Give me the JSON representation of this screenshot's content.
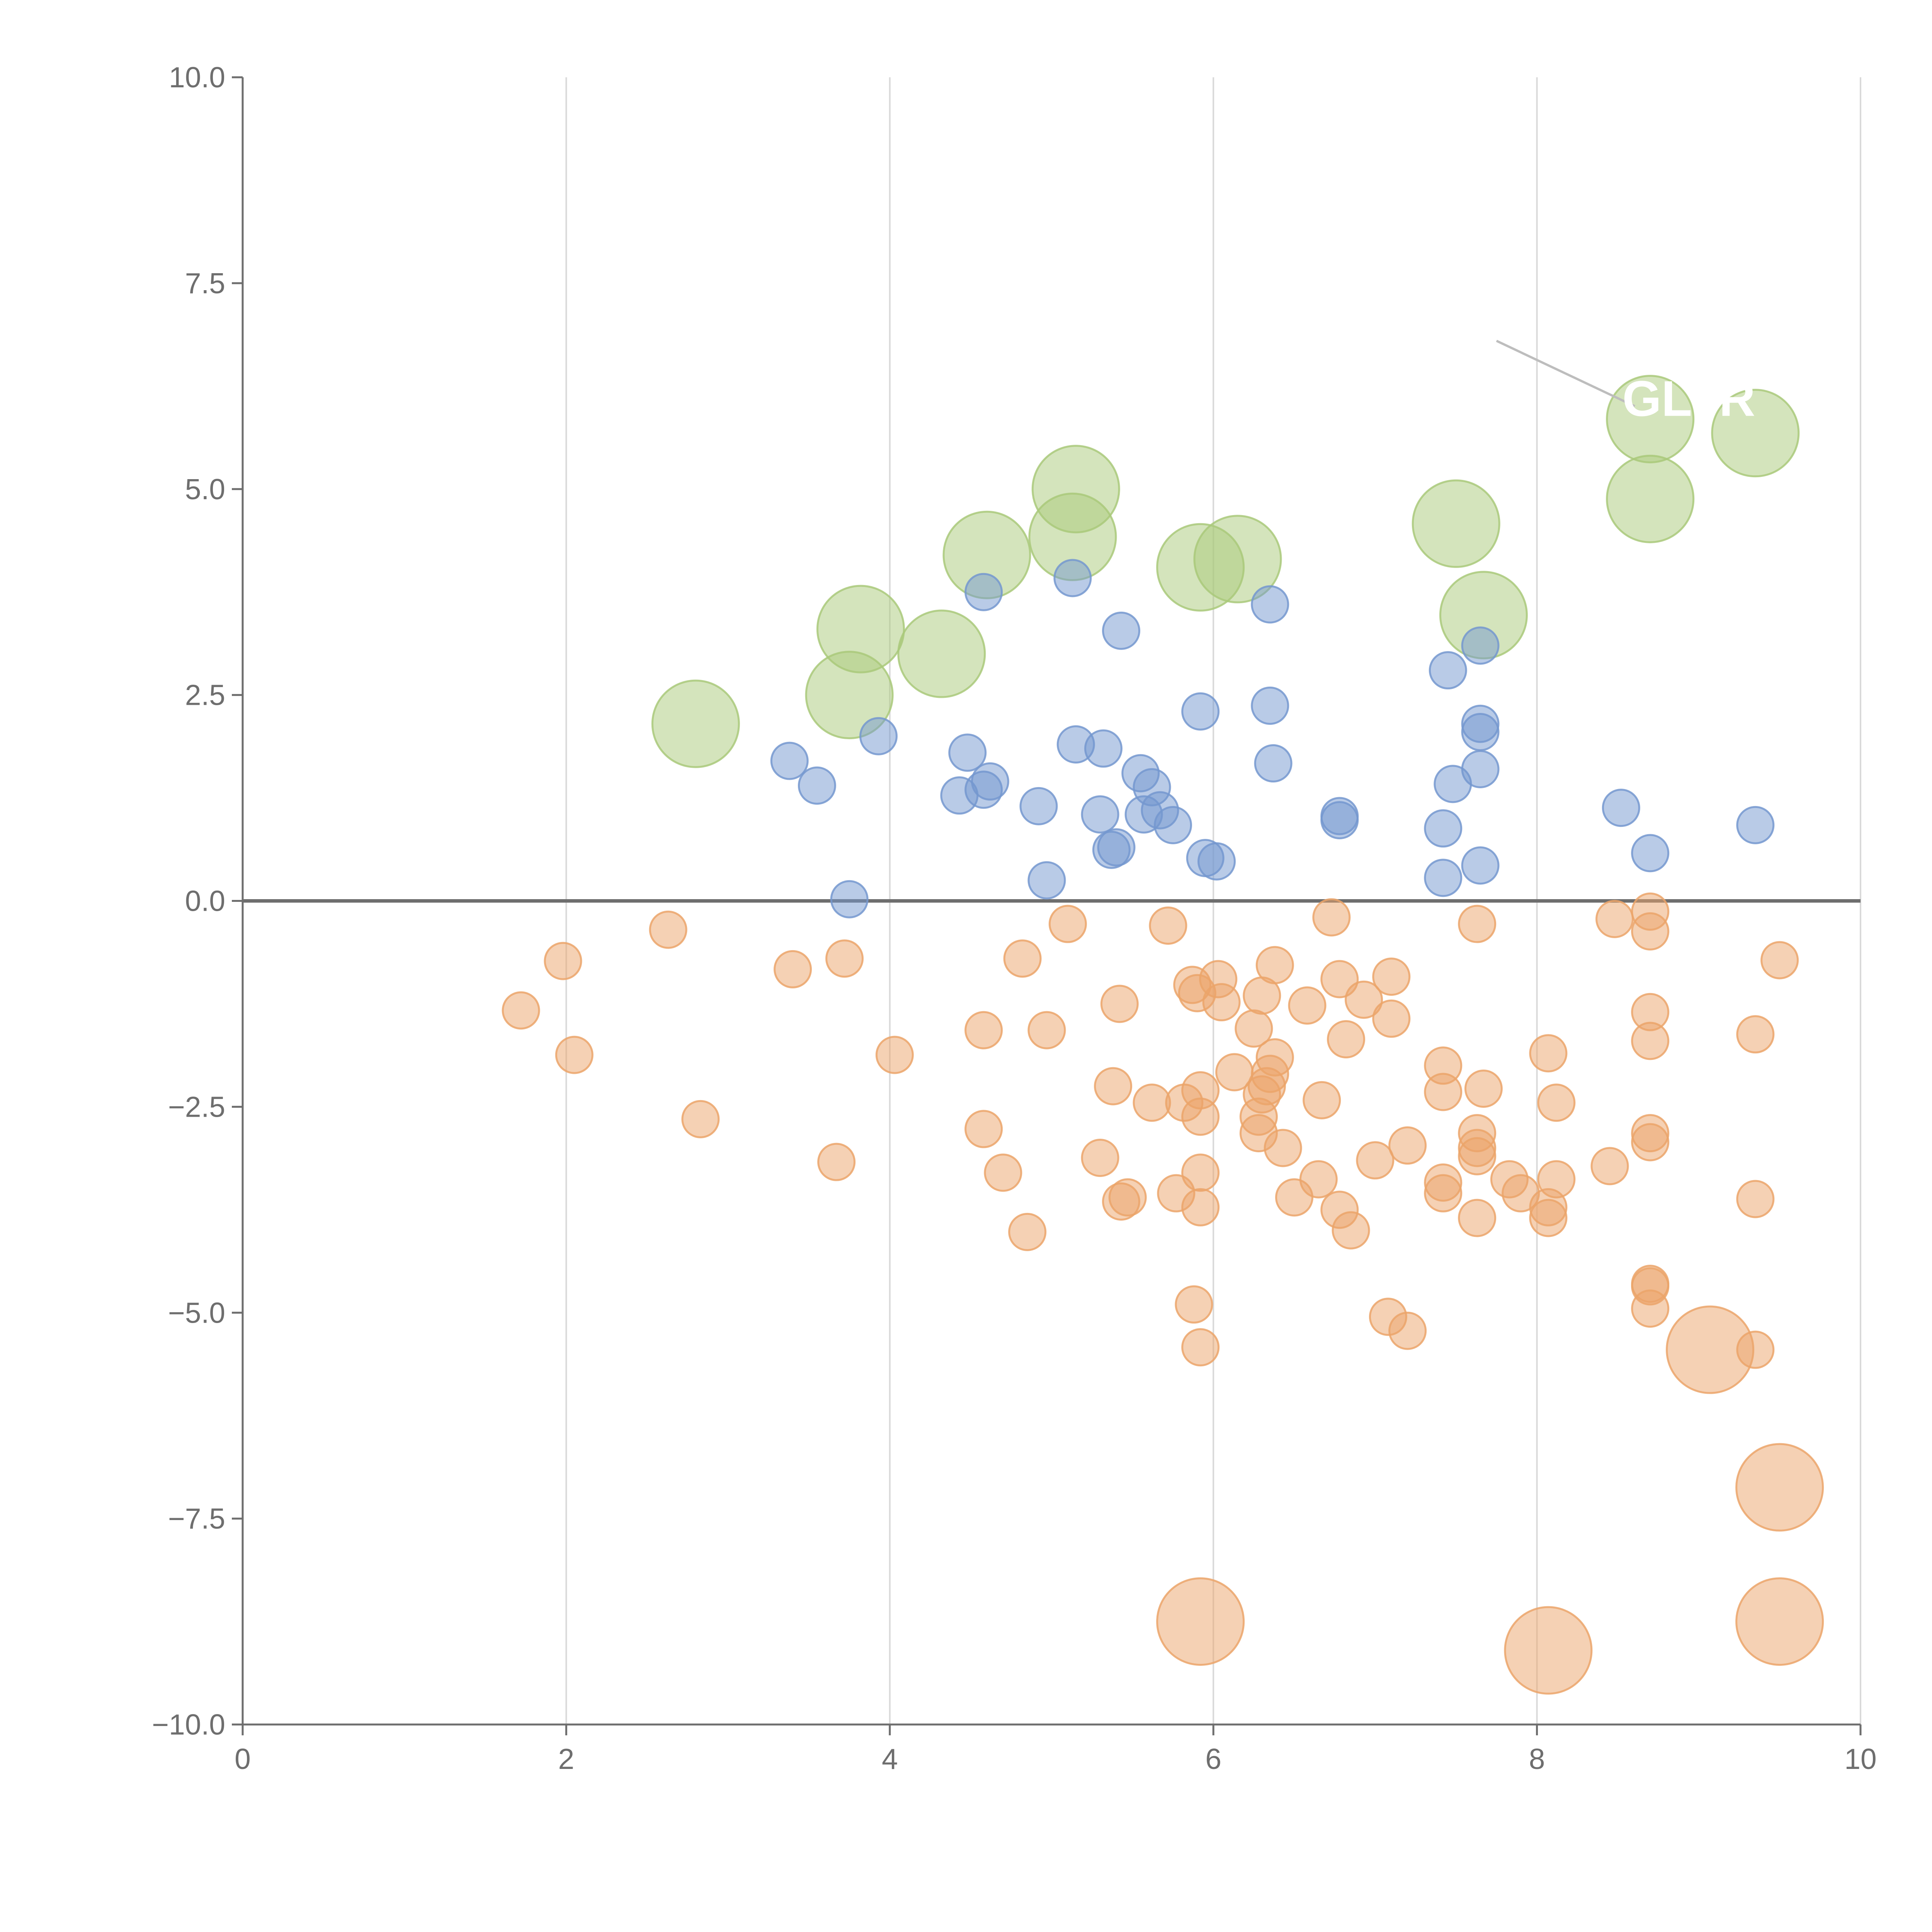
{
  "chart_data": {
    "type": "scatter",
    "title": "",
    "xlabel": "",
    "ylabel": "",
    "xlim": [
      0,
      10
    ],
    "ylim": [
      -10,
      10
    ],
    "grid": "vertical",
    "x_ticks": [
      0,
      2,
      4,
      6,
      8,
      10
    ],
    "x_tick_labels": [
      "0",
      "2",
      "4",
      "6",
      "8",
      "10"
    ],
    "y_ticks": [
      10,
      7.5,
      5,
      2.5,
      0,
      -2.5,
      -5,
      -7.5,
      -10
    ],
    "y_tick_labels": [
      "10.0",
      "7.5",
      "5.0",
      "2.5",
      "0.0",
      "−2.5",
      "−5.0",
      "−7.5",
      "−10.0"
    ],
    "colors": {
      "green": "#a9c97a",
      "blue": "#7498cf",
      "orange": "#eba46a",
      "axis": "#6e6e6e",
      "grid": "#d9d9d9"
    },
    "annotations": [
      {
        "text": "GLTR",
        "x": 8.7,
        "y": 6.1
      }
    ],
    "series": [
      {
        "name": "green",
        "color": "#a9c97a",
        "size": "large",
        "points": [
          [
            2.8,
            2.15
          ],
          [
            3.75,
            2.5
          ],
          [
            3.82,
            3.3
          ],
          [
            4.32,
            3.0
          ],
          [
            4.6,
            4.2
          ],
          [
            5.13,
            4.42
          ],
          [
            5.15,
            5.0
          ],
          [
            5.92,
            4.05
          ],
          [
            6.15,
            4.15
          ],
          [
            7.5,
            4.58
          ],
          [
            7.67,
            3.47
          ],
          [
            8.7,
            5.85
          ],
          [
            8.7,
            4.88
          ],
          [
            9.35,
            5.68
          ]
        ]
      },
      {
        "name": "blue",
        "color": "#7498cf",
        "size": "small",
        "points": [
          [
            3.38,
            1.7
          ],
          [
            3.55,
            1.4
          ],
          [
            3.75,
            0.02
          ],
          [
            3.93,
            2.0
          ],
          [
            4.43,
            1.28
          ],
          [
            4.48,
            1.8
          ],
          [
            4.58,
            3.75
          ],
          [
            4.58,
            1.35
          ],
          [
            4.62,
            1.45
          ],
          [
            4.92,
            1.15
          ],
          [
            4.97,
            0.25
          ],
          [
            5.13,
            3.92
          ],
          [
            5.15,
            1.9
          ],
          [
            5.3,
            1.05
          ],
          [
            5.32,
            1.85
          ],
          [
            5.37,
            0.62
          ],
          [
            5.4,
            0.65
          ],
          [
            5.43,
            3.28
          ],
          [
            5.55,
            1.55
          ],
          [
            5.57,
            1.05
          ],
          [
            5.62,
            1.38
          ],
          [
            5.67,
            1.1
          ],
          [
            5.75,
            0.92
          ],
          [
            5.92,
            2.3
          ],
          [
            5.95,
            0.52
          ],
          [
            6.02,
            0.48
          ],
          [
            6.35,
            3.6
          ],
          [
            6.35,
            2.37
          ],
          [
            6.37,
            1.67
          ],
          [
            6.78,
            0.98
          ],
          [
            6.78,
            1.03
          ],
          [
            7.42,
            0.88
          ],
          [
            7.42,
            0.28
          ],
          [
            7.45,
            2.8
          ],
          [
            7.48,
            1.42
          ],
          [
            7.65,
            3.1
          ],
          [
            7.65,
            2.15
          ],
          [
            7.65,
            2.05
          ],
          [
            7.65,
            1.6
          ],
          [
            7.65,
            0.43
          ],
          [
            8.52,
            1.13
          ],
          [
            8.7,
            0.58
          ],
          [
            9.35,
            0.92
          ]
        ]
      },
      {
        "name": "orange",
        "color": "#eba46a",
        "size": "small",
        "points": [
          [
            1.72,
            -1.33
          ],
          [
            1.98,
            -0.73
          ],
          [
            2.05,
            -1.87
          ],
          [
            2.63,
            -0.35
          ],
          [
            2.83,
            -2.65
          ],
          [
            3.4,
            -0.83
          ],
          [
            3.67,
            -3.17
          ],
          [
            3.72,
            -0.7
          ],
          [
            4.03,
            -1.87
          ],
          [
            4.58,
            -1.57
          ],
          [
            4.58,
            -2.77
          ],
          [
            4.7,
            -3.3
          ],
          [
            4.82,
            -0.7
          ],
          [
            4.85,
            -4.02
          ],
          [
            4.97,
            -1.57
          ],
          [
            5.1,
            -0.28
          ],
          [
            5.3,
            -3.12
          ],
          [
            5.38,
            -2.25
          ],
          [
            5.42,
            -1.25
          ],
          [
            5.43,
            -3.65
          ],
          [
            5.47,
            -3.6
          ],
          [
            5.62,
            -2.45
          ],
          [
            5.72,
            -0.3
          ],
          [
            5.77,
            -3.55
          ],
          [
            5.82,
            -2.45
          ],
          [
            5.87,
            -1.02
          ],
          [
            5.88,
            -4.9
          ],
          [
            5.9,
            -1.12
          ],
          [
            5.92,
            -2.3
          ],
          [
            5.92,
            -2.62
          ],
          [
            5.92,
            -3.3
          ],
          [
            5.92,
            -3.72
          ],
          [
            5.92,
            -5.42
          ],
          [
            6.03,
            -0.95
          ],
          [
            6.05,
            -1.23
          ],
          [
            6.13,
            -2.08
          ],
          [
            6.25,
            -1.55
          ],
          [
            6.28,
            -2.62
          ],
          [
            6.28,
            -2.82
          ],
          [
            6.3,
            -1.15
          ],
          [
            6.3,
            -2.35
          ],
          [
            6.33,
            -2.25
          ],
          [
            6.35,
            -2.1
          ],
          [
            6.38,
            -1.9
          ],
          [
            6.38,
            -0.78
          ],
          [
            6.43,
            -3.0
          ],
          [
            6.5,
            -3.6
          ],
          [
            6.58,
            -1.27
          ],
          [
            6.65,
            -3.38
          ],
          [
            6.67,
            -2.42
          ],
          [
            6.73,
            -0.2
          ],
          [
            6.78,
            -0.95
          ],
          [
            6.78,
            -3.75
          ],
          [
            6.82,
            -1.68
          ],
          [
            6.85,
            -4.0
          ],
          [
            6.93,
            -1.2
          ],
          [
            7.0,
            -3.15
          ],
          [
            7.08,
            -5.05
          ],
          [
            7.1,
            -0.92
          ],
          [
            7.1,
            -1.43
          ],
          [
            7.2,
            -2.97
          ],
          [
            7.2,
            -5.22
          ],
          [
            7.42,
            -2.0
          ],
          [
            7.42,
            -2.32
          ],
          [
            7.42,
            -3.42
          ],
          [
            7.42,
            -3.55
          ],
          [
            7.63,
            -0.28
          ],
          [
            7.63,
            -2.82
          ],
          [
            7.63,
            -3.0
          ],
          [
            7.63,
            -3.1
          ],
          [
            7.63,
            -3.85
          ],
          [
            7.67,
            -2.28
          ],
          [
            7.83,
            -3.38
          ],
          [
            7.9,
            -3.55
          ],
          [
            8.07,
            -1.85
          ],
          [
            8.07,
            -3.72
          ],
          [
            8.07,
            -3.85
          ],
          [
            8.12,
            -2.45
          ],
          [
            8.12,
            -3.38
          ],
          [
            8.45,
            -3.22
          ],
          [
            8.48,
            -0.22
          ],
          [
            8.7,
            -0.13
          ],
          [
            8.7,
            -0.37
          ],
          [
            8.7,
            -1.35
          ],
          [
            8.7,
            -1.7
          ],
          [
            8.7,
            -2.82
          ],
          [
            8.7,
            -2.93
          ],
          [
            8.7,
            -4.65
          ],
          [
            8.7,
            -4.68
          ],
          [
            8.7,
            -4.95
          ],
          [
            9.35,
            -1.62
          ],
          [
            9.35,
            -3.62
          ],
          [
            9.35,
            -5.45
          ],
          [
            9.5,
            -0.72
          ]
        ]
      },
      {
        "name": "orange-large",
        "color": "#eba46a",
        "size": "large",
        "points": [
          [
            5.92,
            -8.75
          ],
          [
            8.07,
            -9.1
          ],
          [
            9.07,
            -5.45
          ],
          [
            9.5,
            -7.12
          ],
          [
            9.5,
            -8.75
          ]
        ]
      }
    ]
  }
}
